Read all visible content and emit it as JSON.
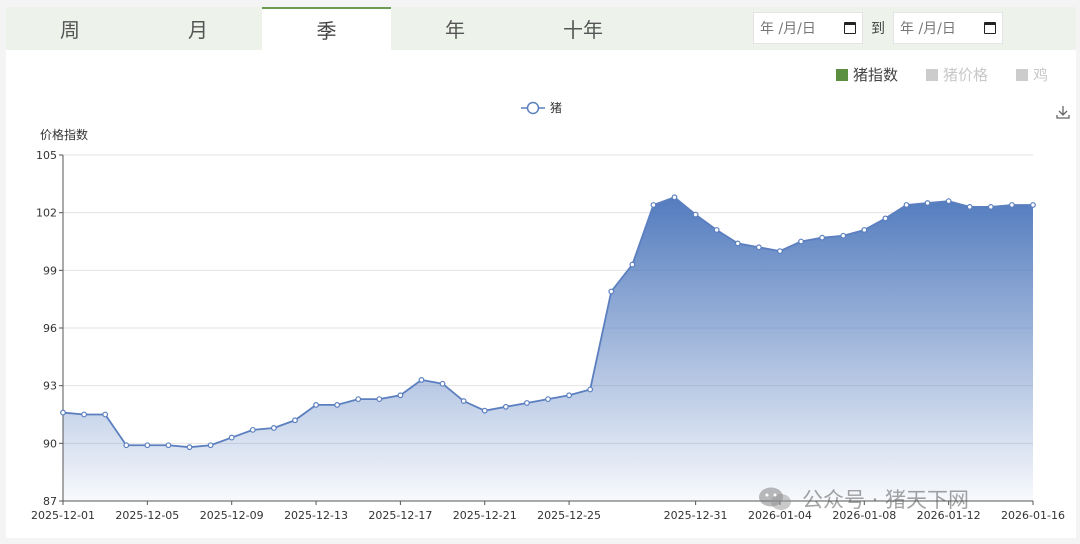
{
  "tabs": [
    {
      "label": "周",
      "active": false
    },
    {
      "label": "月",
      "active": false
    },
    {
      "label": "季",
      "active": true
    },
    {
      "label": "年",
      "active": false
    },
    {
      "label": "十年",
      "active": false
    }
  ],
  "date_range": {
    "start_placeholder": "年 /月/日",
    "end_placeholder": "年 /月/日",
    "to_label": "到"
  },
  "metric_legend": [
    {
      "label": "猪指数",
      "color": "#5b8f42",
      "active": true
    },
    {
      "label": "猪价格",
      "color": "#cccccc",
      "active": false
    },
    {
      "label": "鸡",
      "color": "#cccccc",
      "active": false
    }
  ],
  "watermark": "公众号 · 猪天下网",
  "icons": {
    "download": "download-icon",
    "calendar": "calendar-icon",
    "wechat": "wechat-icon"
  },
  "chart_data": {
    "type": "area",
    "ylabel": "价格指数",
    "xlabel": "",
    "ylim": [
      87,
      105
    ],
    "yticks": [
      87,
      90,
      93,
      96,
      99,
      102,
      105
    ],
    "grid": true,
    "legend_position": "top-center",
    "x": [
      "2025-12-01",
      "2025-12-02",
      "2025-12-03",
      "2025-12-04",
      "2025-12-05",
      "2025-12-06",
      "2025-12-07",
      "2025-12-08",
      "2025-12-09",
      "2025-12-10",
      "2025-12-11",
      "2025-12-12",
      "2025-12-13",
      "2025-12-14",
      "2025-12-15",
      "2025-12-16",
      "2025-12-17",
      "2025-12-18",
      "2025-12-19",
      "2025-12-20",
      "2025-12-21",
      "2025-12-22",
      "2025-12-23",
      "2025-12-24",
      "2025-12-25",
      "2025-12-26",
      "2025-12-27",
      "2025-12-28",
      "2025-12-29",
      "2025-12-30",
      "2025-12-31",
      "2026-01-01",
      "2026-01-02",
      "2026-01-03",
      "2026-01-04",
      "2026-01-05",
      "2026-01-06",
      "2026-01-07",
      "2026-01-08",
      "2026-01-09",
      "2026-01-10",
      "2026-01-11",
      "2026-01-12",
      "2026-01-13",
      "2026-01-14",
      "2026-01-15",
      "2026-01-16"
    ],
    "xtick_labels": [
      "2025-12-01",
      "2025-12-05",
      "2025-12-09",
      "2025-12-13",
      "2025-12-17",
      "2025-12-21",
      "2025-12-25",
      "2025-12-31",
      "2026-01-04",
      "2026-01-08",
      "2026-01-12",
      "2026-01-16"
    ],
    "series": [
      {
        "name": "猪",
        "color": "#5b7fbf",
        "values": [
          91.6,
          91.5,
          91.5,
          89.9,
          89.9,
          89.9,
          89.8,
          89.9,
          90.3,
          90.7,
          90.8,
          91.2,
          92.0,
          92.0,
          92.3,
          92.3,
          92.5,
          93.3,
          93.1,
          92.2,
          91.7,
          91.9,
          92.1,
          92.3,
          92.5,
          92.8,
          97.9,
          99.3,
          102.4,
          102.8,
          101.9,
          101.1,
          100.4,
          100.2,
          100.0,
          100.5,
          100.7,
          100.8,
          101.1,
          101.7,
          102.4,
          102.5,
          102.6,
          102.3,
          102.3,
          102.4,
          102.4
        ]
      }
    ]
  }
}
